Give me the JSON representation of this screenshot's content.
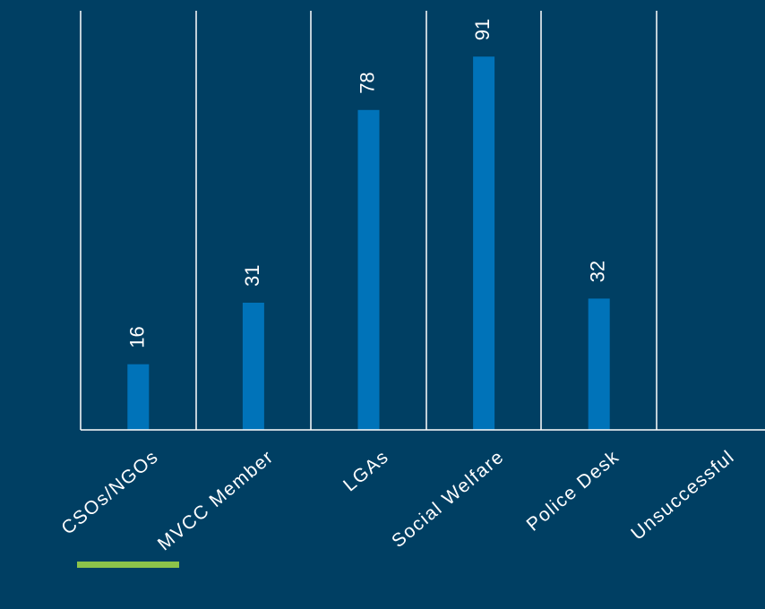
{
  "chart_data": {
    "type": "bar",
    "categories": [
      "CSOs/NGOs",
      "MVCC Member",
      "LGAs",
      "Social Welfare",
      "Police Desk",
      "Unsuccessful"
    ],
    "values": [
      16,
      31,
      78,
      91,
      32,
      null
    ],
    "data_labels": [
      "16",
      "31",
      "78",
      "91",
      "32",
      ""
    ],
    "title": "",
    "xlabel": "",
    "ylabel": "",
    "ylim": [
      0,
      100
    ],
    "grid": "vertical category separators",
    "legend": "none"
  },
  "colors": {
    "background": "#003f63",
    "bar": "#0073b9",
    "text": "#ffffff",
    "axis": "#ffffff",
    "accent": "#8dc34a"
  }
}
